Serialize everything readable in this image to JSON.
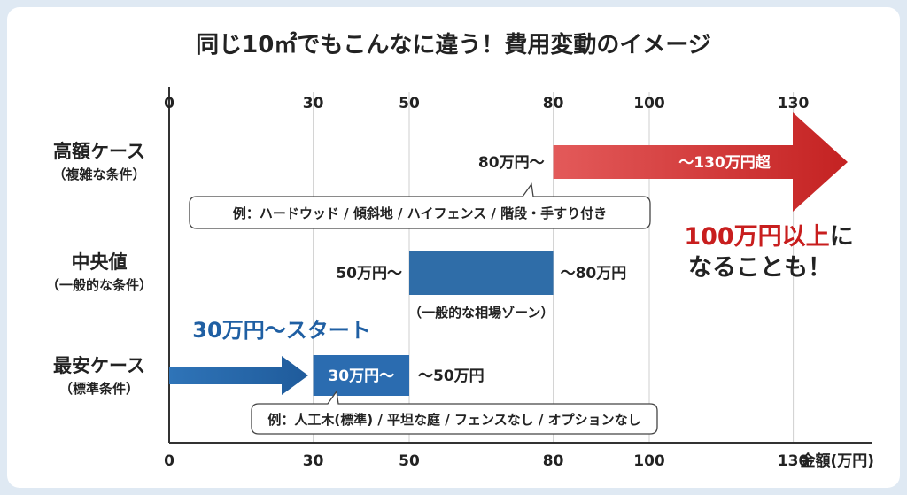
{
  "title": "同じ10㎡でもこんなに違う！費用変動のイメージ",
  "chart_data": {
    "type": "bar",
    "xlim": [
      0,
      150
    ],
    "ticks": [
      0,
      30,
      50,
      80,
      100,
      130
    ],
    "xunit_label": "金額(万円)",
    "grid": true,
    "rows": [
      {
        "label": "高額ケース",
        "sublabel": "（複雑な条件）",
        "start": 80,
        "end": 130,
        "open_ended": true,
        "start_label": "80万円〜",
        "inner_label": "〜130万円超",
        "note": "例：ハードウッド / 傾斜地 / ハイフェンス / 階段・手すり付き",
        "color": "#d93a3a"
      },
      {
        "label": "中央値",
        "sublabel": "（一般的な条件）",
        "start": 50,
        "end": 80,
        "start_label": "50万円〜",
        "end_label": "〜80万円",
        "below_label": "（一般的な相場ゾーン）",
        "color": "#2f6da8"
      },
      {
        "label": "最安ケース",
        "sublabel": "（標準条件）",
        "start": 30,
        "end": 50,
        "lead_from": 0,
        "inner_label": "30万円〜",
        "end_label": "〜50万円",
        "note": "例：人工木(標準) / 平坦な庭 / フェンスなし / オプションなし",
        "color": "#2b6cb0"
      }
    ],
    "annotations": [
      {
        "text_red": "100万円以上",
        "text_black": "に",
        "text_line2": "なることも！",
        "red_color": "#c81e1e"
      },
      {
        "text": "30万円〜スタート",
        "color": "#1f5fa3"
      }
    ]
  }
}
